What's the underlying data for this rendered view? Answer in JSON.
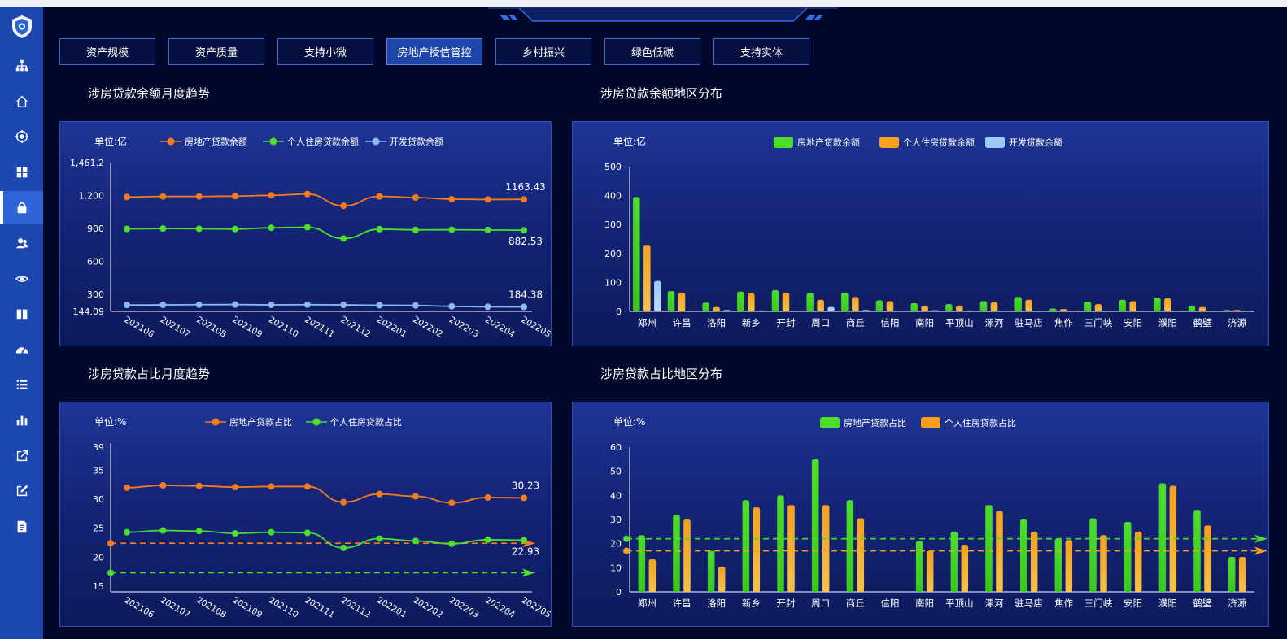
{
  "sidebar": {
    "items": [
      {
        "icon": "sitemap-icon"
      },
      {
        "icon": "home-icon"
      },
      {
        "icon": "target-icon"
      },
      {
        "icon": "grid-icon"
      },
      {
        "icon": "lock-icon",
        "active": true
      },
      {
        "icon": "users-icon"
      },
      {
        "icon": "eye-icon"
      },
      {
        "icon": "book-icon"
      },
      {
        "icon": "dashboard-icon"
      },
      {
        "icon": "list-icon"
      },
      {
        "icon": "bar-chart-icon"
      },
      {
        "icon": "external-link-icon"
      },
      {
        "icon": "edit-icon"
      },
      {
        "icon": "document-icon"
      }
    ]
  },
  "tabs": [
    {
      "label": "资产规模"
    },
    {
      "label": "资产质量"
    },
    {
      "label": "支持小微"
    },
    {
      "label": "房地产授信管控",
      "active": true
    },
    {
      "label": "乡村振兴"
    },
    {
      "label": "绿色低碳"
    },
    {
      "label": "支持实体"
    }
  ],
  "sections": {
    "amount_trend": "涉房贷款余额月度趋势",
    "amount_region": "涉房贷款余额地区分布",
    "ratio_trend": "涉房贷款占比月度趋势",
    "ratio_region": "涉房贷款占比地区分布"
  },
  "colors": {
    "orange": "#f57b1c",
    "green": "#4ddd2c",
    "blue": "#8ab8f5",
    "accent": "#2f64d6"
  },
  "chart_data": [
    {
      "type": "line",
      "unit": "单位:亿",
      "x": [
        "202106",
        "202107",
        "202108",
        "202109",
        "202110",
        "202111",
        "202112",
        "202201",
        "202202",
        "202203",
        "202204",
        "202205"
      ],
      "ylim": [
        144.09,
        1461.2
      ],
      "yticks": [
        300,
        600,
        900,
        1200
      ],
      "ytick_labels": [
        "300",
        "600",
        "900",
        "1,200"
      ],
      "ymin_label": "144.09",
      "ymax_label": "1,461.2",
      "series": [
        {
          "name": "房地产贷款余额",
          "color": "#f57b1c",
          "values": [
            1185,
            1190,
            1190,
            1193,
            1200,
            1212,
            1105,
            1190,
            1180,
            1165,
            1162,
            1163.43
          ],
          "end_label": "1163.43"
        },
        {
          "name": "个人住房贷款余额",
          "color": "#4ddd2c",
          "values": [
            895,
            898,
            896,
            893,
            905,
            910,
            807,
            892,
            886,
            887,
            885,
            882.53
          ],
          "end_label": "882.53"
        },
        {
          "name": "开发贷款余额",
          "color": "#8ab8f5",
          "values": [
            202,
            203,
            205,
            206,
            203,
            205,
            203,
            200,
            198,
            190,
            186,
            184.38
          ],
          "end_label": "184.38"
        }
      ]
    },
    {
      "type": "bar",
      "unit": "单位:亿",
      "categories": [
        "郑州",
        "许昌",
        "洛阳",
        "新乡",
        "开封",
        "周口",
        "商丘",
        "信阳",
        "南阳",
        "平顶山",
        "漯河",
        "驻马店",
        "焦作",
        "三门峡",
        "安阳",
        "濮阳",
        "鹤壁",
        "济源"
      ],
      "ylim": [
        0,
        500
      ],
      "yticks": [
        0,
        100,
        200,
        300,
        400,
        500
      ],
      "series": [
        {
          "name": "房地产贷款余额",
          "color": "#4ddd2c",
          "values": [
            395,
            70,
            30,
            68,
            73,
            63,
            65,
            38,
            28,
            25,
            35,
            50,
            10,
            33,
            40,
            47,
            20,
            5
          ]
        },
        {
          "name": "个人住房贷款余额",
          "color": "#f5a01c",
          "values": [
            230,
            65,
            15,
            62,
            65,
            40,
            50,
            35,
            20,
            20,
            32,
            40,
            8,
            25,
            35,
            45,
            15,
            5
          ]
        },
        {
          "name": "开发贷款余额",
          "color": "#9ccaf7",
          "values": [
            105,
            2,
            5,
            3,
            1,
            15,
            5,
            1,
            4,
            3,
            1,
            2,
            1,
            2,
            2,
            1,
            1,
            1
          ]
        }
      ]
    },
    {
      "type": "line",
      "unit": "单位:%",
      "x": [
        "202106",
        "202107",
        "202108",
        "202109",
        "202110",
        "202111",
        "202112",
        "202201",
        "202202",
        "202203",
        "202204",
        "202205"
      ],
      "ylim": [
        14,
        39
      ],
      "yticks": [
        15,
        20,
        25,
        30,
        35,
        39
      ],
      "series": [
        {
          "name": "房地产贷款占比",
          "color": "#f57b1c",
          "values": [
            32.0,
            32.4,
            32.3,
            32.1,
            32.2,
            32.2,
            29.5,
            30.9,
            30.5,
            29.4,
            30.3,
            30.23
          ],
          "end_label": "30.23",
          "reference": 22.4
        },
        {
          "name": "个人住房贷款占比",
          "color": "#4ddd2c",
          "values": [
            24.3,
            24.6,
            24.5,
            24.1,
            24.3,
            24.2,
            21.6,
            23.2,
            22.8,
            22.3,
            23.0,
            22.93
          ],
          "end_label": "22.93",
          "reference": 17.3
        }
      ]
    },
    {
      "type": "bar",
      "unit": "单位:%",
      "categories": [
        "郑州",
        "许昌",
        "洛阳",
        "新乡",
        "开封",
        "周口",
        "商丘",
        "信阳",
        "南阳",
        "平顶山",
        "漯河",
        "驻马店",
        "焦作",
        "三门峡",
        "安阳",
        "濮阳",
        "鹤壁",
        "济源"
      ],
      "ylim": [
        0,
        60
      ],
      "yticks": [
        0,
        10,
        20,
        30,
        40,
        50,
        60
      ],
      "series": [
        {
          "name": "房地产贷款占比",
          "color": "#4ddd2c",
          "values": [
            23.5,
            32,
            17,
            38,
            40,
            55,
            38,
            0,
            21,
            25,
            36,
            30,
            22,
            30.5,
            29,
            45,
            34,
            14.5
          ],
          "reference": 22
        },
        {
          "name": "个人住房贷款占比",
          "color": "#f5a01c",
          "values": [
            13.5,
            30,
            10.5,
            35,
            36,
            36,
            30.5,
            0,
            17,
            19.5,
            33.5,
            25,
            21.5,
            23.5,
            25,
            44,
            27.5,
            14.5
          ],
          "reference": 17
        }
      ]
    }
  ]
}
